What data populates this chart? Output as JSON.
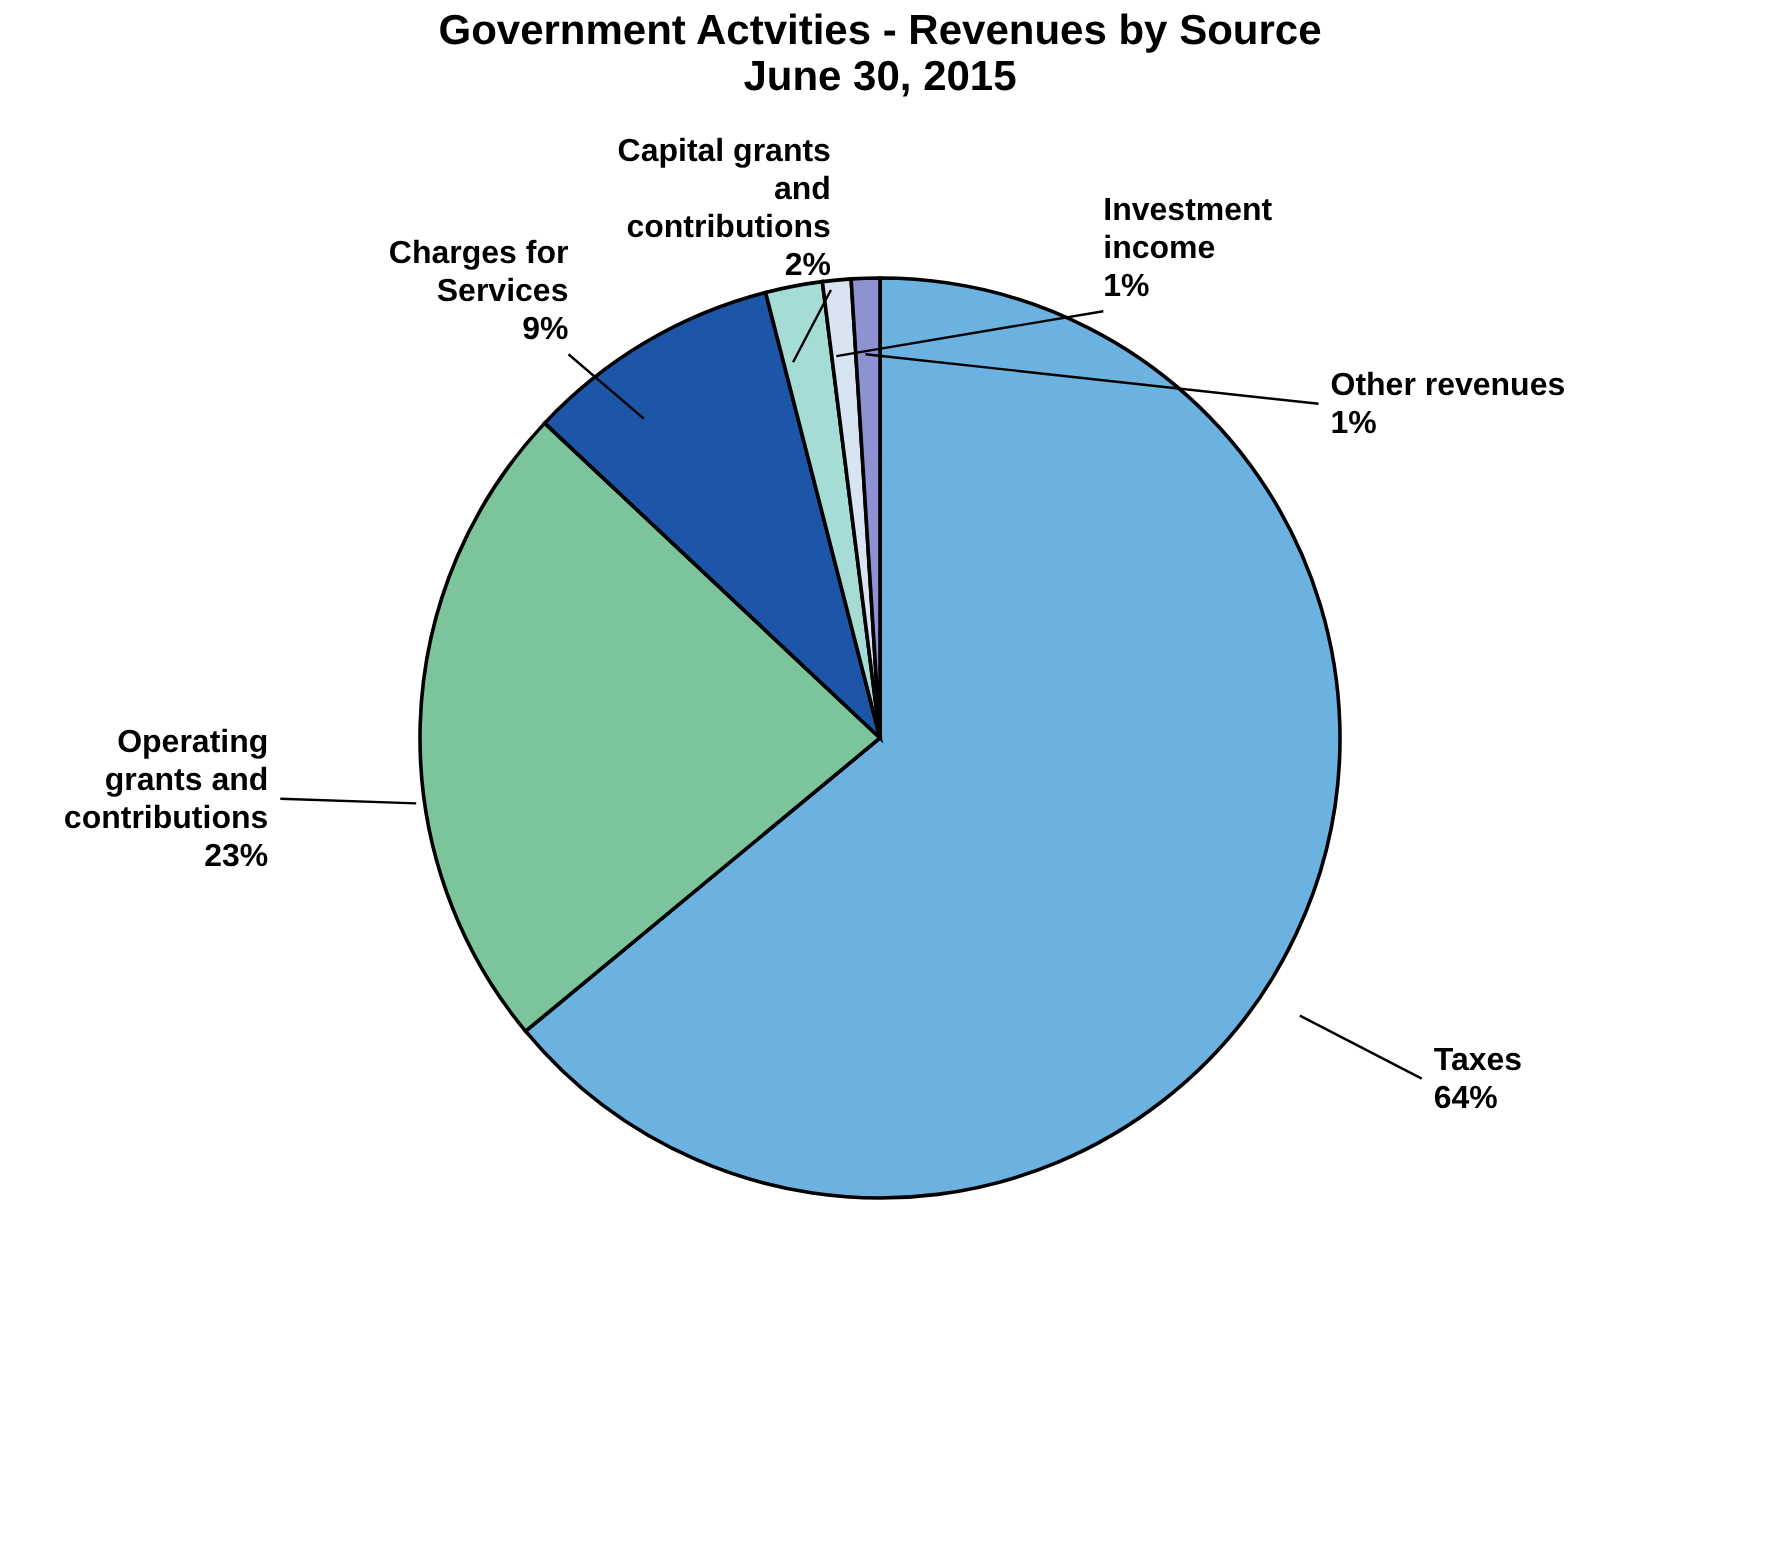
{
  "chart_data": {
    "type": "pie",
    "title": [
      "Government Actvities - Revenues by Source",
      "June 30, 2015"
    ],
    "categories": [
      "Taxes",
      "Operating grants and contributions",
      "Charges for Services",
      "Capital grants and contributions",
      "Investment income",
      "Other revenues"
    ],
    "values": [
      64,
      23,
      9,
      2,
      1,
      1
    ],
    "colors": [
      "#6bb2e0",
      "#7cc49c",
      "#1d56a8",
      "#a6dcd6",
      "#d8e4f2",
      "#8f92d2"
    ],
    "value_labels": [
      "64%",
      "23%",
      "9%",
      "2%",
      "1%",
      "1%"
    ],
    "legend": false
  }
}
